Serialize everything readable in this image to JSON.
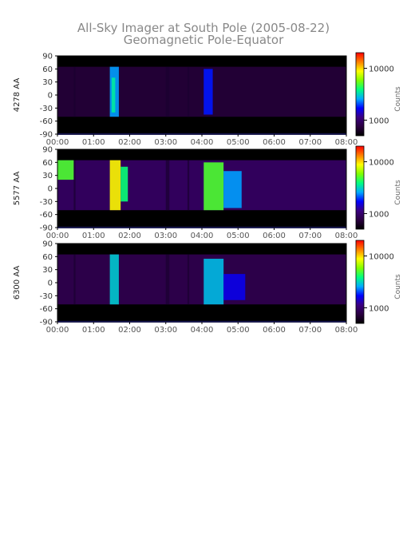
{
  "chart_data": {
    "type": "heatmap",
    "title_line1": "All-Sky Imager at South Pole (2005-08-22)",
    "title_line2": "Geomagnetic Pole-Equator",
    "x_tick_labels": [
      "00:00",
      "01:00",
      "02:00",
      "03:00",
      "04:00",
      "05:00",
      "06:00",
      "07:00",
      "08:00"
    ],
    "xlim_hours": [
      0,
      8
    ],
    "y_tick_labels": [
      "90",
      "60",
      "30",
      "0",
      "-30",
      "-60",
      "-90"
    ],
    "ylim": [
      -90,
      90
    ],
    "colorbar": {
      "label": "Counts",
      "tick_labels": [
        "10000",
        "1000"
      ],
      "tick_values": [
        10000,
        1000
      ],
      "range": [
        500,
        20000
      ],
      "scale": "log",
      "colors": [
        "#000000",
        "#2a0040",
        "#3b0080",
        "#0000ff",
        "#00aaff",
        "#00ff80",
        "#80ff00",
        "#ffff00",
        "#ff8000",
        "#ff0000"
      ]
    },
    "panels": [
      {
        "ylabel": "4278 AA",
        "data_lat_range": [
          -50,
          65
        ],
        "background_counts": 700,
        "features": [
          {
            "t0": 1.45,
            "t1": 1.7,
            "lat0": -50,
            "lat1": 65,
            "counts": 2500
          },
          {
            "t0": 1.5,
            "t1": 1.6,
            "lat0": -40,
            "lat1": 40,
            "counts": 3500
          },
          {
            "t0": 4.05,
            "t1": 4.3,
            "lat0": -45,
            "lat1": 60,
            "counts": 1800
          }
        ]
      },
      {
        "ylabel": "5577 AA",
        "data_lat_range": [
          -50,
          65
        ],
        "background_counts": 900,
        "features": [
          {
            "t0": 0.0,
            "t1": 0.45,
            "lat0": 20,
            "lat1": 65,
            "counts": 5000
          },
          {
            "t0": 1.45,
            "t1": 1.75,
            "lat0": -50,
            "lat1": 65,
            "counts": 9000
          },
          {
            "t0": 1.75,
            "t1": 1.95,
            "lat0": -30,
            "lat1": 50,
            "counts": 4000
          },
          {
            "t0": 4.05,
            "t1": 4.6,
            "lat0": -50,
            "lat1": 60,
            "counts": 5000
          },
          {
            "t0": 4.6,
            "t1": 5.1,
            "lat0": -45,
            "lat1": 40,
            "counts": 2500
          }
        ]
      },
      {
        "ylabel": "6300 AA",
        "data_lat_range": [
          -50,
          65
        ],
        "background_counts": 800,
        "features": [
          {
            "t0": 1.45,
            "t1": 1.7,
            "lat0": -50,
            "lat1": 65,
            "counts": 3000
          },
          {
            "t0": 4.05,
            "t1": 4.6,
            "lat0": -50,
            "lat1": 55,
            "counts": 2800
          },
          {
            "t0": 4.6,
            "t1": 5.2,
            "lat0": -40,
            "lat1": 20,
            "counts": 1600
          }
        ]
      }
    ]
  }
}
